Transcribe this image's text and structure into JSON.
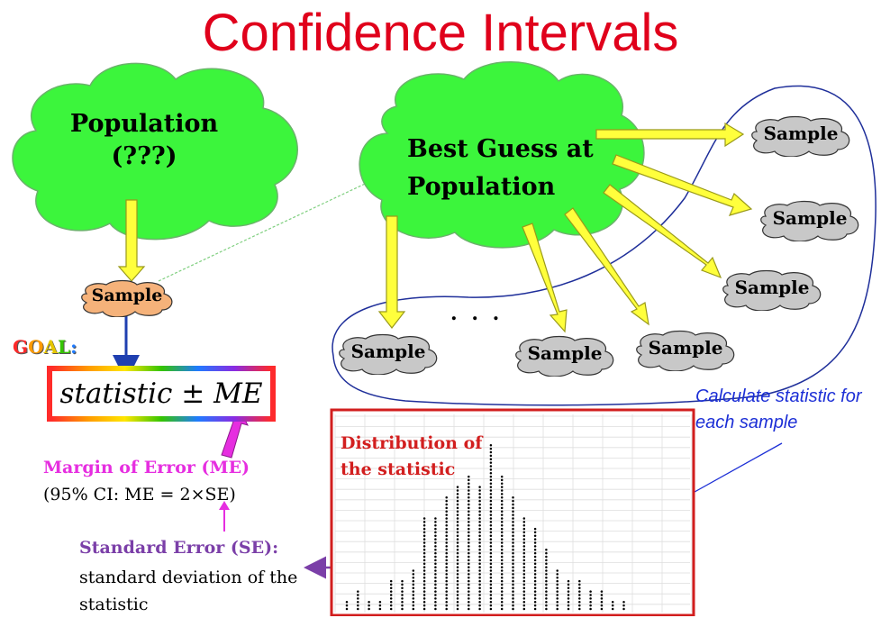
{
  "title": "Confidence Intervals",
  "population_cloud": {
    "line1": "Population",
    "line2": "(???)"
  },
  "best_guess_cloud": {
    "line1": "Best Guess at",
    "line2": "Population"
  },
  "sample_label": "Sample",
  "ellipsis": ". . .",
  "goal_label": "GOAL:",
  "goal_colors": [
    "#ff2a2a",
    "#ff9a00",
    "#e6c700",
    "#34c500",
    "#1f7bff"
  ],
  "statistic_formula": "statistic ± ME",
  "margin_of_error": {
    "label": "Margin of Error (ME)",
    "sub": "(95% CI: ME = 2×SE)"
  },
  "standard_error": {
    "label": "Standard Error (SE):",
    "sub": "standard deviation of the statistic"
  },
  "calculate_note": "Calculate statistic for each sample",
  "distribution_label": "Distribution of the statistic",
  "colors": {
    "title": "#e0001b",
    "population_cloud": "#3cf53c",
    "sample_orange": "#f5b27a",
    "sample_gray": "#c8c8c8",
    "arrow_yellow": "#ffff3c",
    "arrow_navy": "#1f3fb0",
    "margin_pink": "#e62ee0",
    "se_purple": "#7b3fa8",
    "distribution_border": "#d21e1e",
    "note_blue": "#1c2fd6"
  },
  "dotplot_counts": [
    1,
    2,
    1,
    1,
    3,
    3,
    4,
    9,
    9,
    11,
    12,
    13,
    12,
    16,
    13,
    11,
    9,
    8,
    6,
    4,
    3,
    3,
    2,
    2,
    1,
    1
  ]
}
